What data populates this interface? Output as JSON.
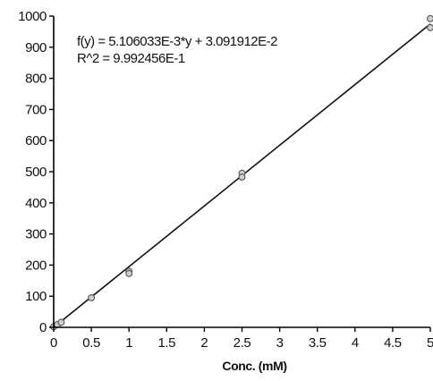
{
  "chart_data": {
    "type": "scatter",
    "xlabel": "Conc. (mM)",
    "ylabel": "",
    "xlim": [
      0,
      5
    ],
    "ylim": [
      0,
      1000
    ],
    "x_ticks": [
      "0",
      "0.5",
      "1",
      "1.5",
      "2",
      "2.5",
      "3",
      "3.5",
      "4",
      "4.5",
      "5"
    ],
    "y_ticks": [
      "0",
      "100",
      "200",
      "300",
      "400",
      "500",
      "600",
      "700",
      "800",
      "900",
      "1000"
    ],
    "grid": false,
    "series": [
      {
        "points": [
          {
            "x": 0,
            "y": 2
          },
          {
            "x": 0.05,
            "y": 9
          },
          {
            "x": 0.1,
            "y": 16
          },
          {
            "x": 0.5,
            "y": 95
          },
          {
            "x": 1,
            "y": 180
          },
          {
            "x": 1,
            "y": 173
          },
          {
            "x": 2.5,
            "y": 495
          },
          {
            "x": 2.5,
            "y": 483
          },
          {
            "x": 5,
            "y": 992
          },
          {
            "x": 5,
            "y": 963
          }
        ]
      }
    ],
    "fit_line": {
      "x": [
        0,
        5
      ],
      "y": [
        0,
        975
      ]
    },
    "annotations": [
      "f(y) = 5.106033E-3*y + 3.091912E-2",
      "R^2 = 9.992456E-1"
    ],
    "colors": {
      "axis": "#000000",
      "line": "#111111",
      "marker_stroke": "#555555",
      "marker_fill": "#cfcfcf"
    }
  }
}
